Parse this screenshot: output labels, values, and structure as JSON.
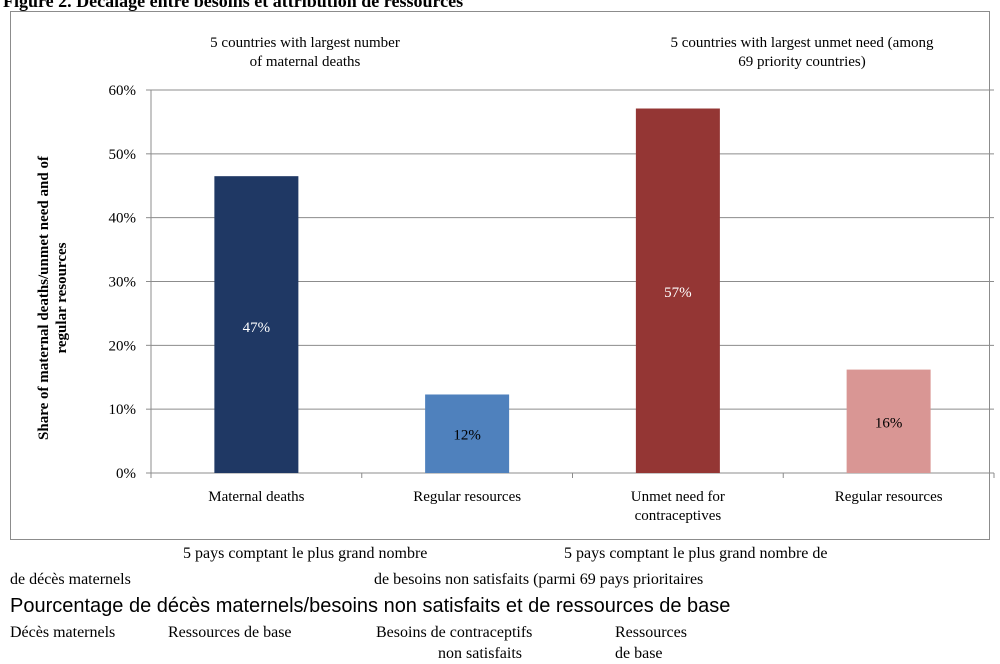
{
  "figure_title": "Figure 2. Décalage entre besoins et attribution de ressources",
  "colors": {
    "maternal_deaths": "#1F3864",
    "regular_resources_1": "#4F81BD",
    "unmet_need": "#943634",
    "regular_resources_2": "#D99694"
  },
  "chart_data": {
    "type": "bar",
    "group_headers": [
      "5 countries with largest number\nof maternal deaths",
      "5 countries with largest unmet need (among\n69 priority countries)"
    ],
    "categories": [
      "Maternal deaths",
      "Regular resources",
      "Unmet need for\ncontraceptives",
      "Regular resources"
    ],
    "values": [
      0.465,
      0.123,
      0.571,
      0.162
    ],
    "data_labels": [
      "47%",
      "12%",
      "57%",
      "16%"
    ],
    "bar_colors": [
      "#1F3864",
      "#4F81BD",
      "#943634",
      "#D99694"
    ],
    "ylabel": "Share of maternal deaths/unmet need and of\nregular resources",
    "ylim": [
      0,
      0.6
    ],
    "yticks": [
      "0%",
      "10%",
      "20%",
      "30%",
      "40%",
      "50%",
      "60%"
    ],
    "grid": true,
    "legend": "none"
  },
  "french_caption": {
    "group_header_1_a": "5 pays comptant le plus grand nombre",
    "group_header_1_b": "de décès maternels",
    "group_header_2_a": "5 pays comptant le plus grand nombre de",
    "group_header_2_b": "de besoins non satisfaits (parmi 69 pays prioritaires",
    "axis_label": "Pourcentage de décès maternels/besoins non satisfaits et de ressources de base",
    "cat_1": "Décès maternels",
    "cat_2": "Ressources de base",
    "cat_3_a": "Besoins de contraceptifs",
    "cat_3_b": "non satisfaits",
    "cat_4_a": "Ressources",
    "cat_4_b": "de base"
  }
}
